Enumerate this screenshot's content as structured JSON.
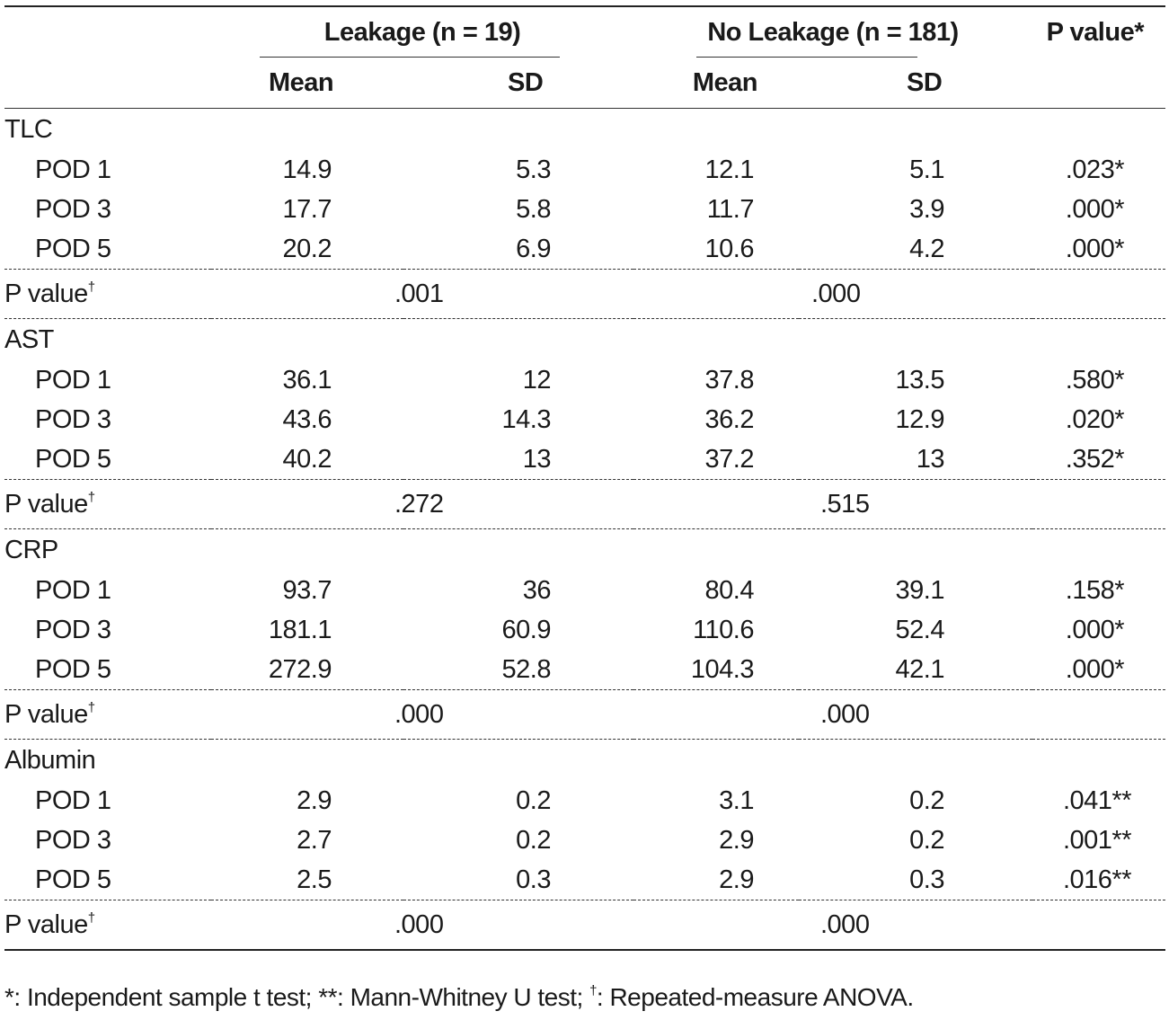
{
  "header": {
    "group_leakage": "Leakage (n = 19)",
    "group_no_leakage": "No Leakage (n = 181)",
    "p_value_col": "P value*",
    "mean": "Mean",
    "sd": "SD"
  },
  "sections": [
    {
      "name": "TLC",
      "rows": [
        {
          "label": "POD 1",
          "l_mean": "14.9",
          "l_sd": "5.3",
          "n_mean": "12.1",
          "n_sd": "5.1",
          "p": ".023*"
        },
        {
          "label": "POD 3",
          "l_mean": "17.7",
          "l_sd": "5.8",
          "n_mean": "11.7",
          "n_sd": "3.9",
          "p": ".000*"
        },
        {
          "label": "POD 5",
          "l_mean": "20.2",
          "l_sd": "6.9",
          "n_mean": "10.6",
          "n_sd": "4.2",
          "p": ".000*"
        }
      ],
      "pvalue_label": "P value",
      "pvalue_mark": "†",
      "pvalue_leakage": ".001",
      "pvalue_no_leakage": ".000"
    },
    {
      "name": "AST",
      "rows": [
        {
          "label": "POD 1",
          "l_mean": "36.1",
          "l_sd": "12",
          "n_mean": "37.8",
          "n_sd": "13.5",
          "p": ".580*"
        },
        {
          "label": "POD 3",
          "l_mean": "43.6",
          "l_sd": "14.3",
          "n_mean": "36.2",
          "n_sd": "12.9",
          "p": ".020*"
        },
        {
          "label": "POD 5",
          "l_mean": "40.2",
          "l_sd": "13",
          "n_mean": "37.2",
          "n_sd": "13",
          "p": ".352*"
        }
      ],
      "pvalue_label": "P value",
      "pvalue_mark": "†",
      "pvalue_leakage": ".272",
      "pvalue_no_leakage": ".515"
    },
    {
      "name": "CRP",
      "rows": [
        {
          "label": "POD 1",
          "l_mean": "93.7",
          "l_sd": "36",
          "n_mean": "80.4",
          "n_sd": "39.1",
          "p": ".158*"
        },
        {
          "label": "POD 3",
          "l_mean": "181.1",
          "l_sd": "60.9",
          "n_mean": "110.6",
          "n_sd": "52.4",
          "p": ".000*"
        },
        {
          "label": "POD 5",
          "l_mean": "272.9",
          "l_sd": "52.8",
          "n_mean": "104.3",
          "n_sd": "42.1",
          "p": ".000*"
        }
      ],
      "pvalue_label": "P value",
      "pvalue_mark": "†",
      "pvalue_leakage": ".000",
      "pvalue_no_leakage": ".000"
    },
    {
      "name": "Albumin",
      "rows": [
        {
          "label": "POD 1",
          "l_mean": "2.9",
          "l_sd": "0.2",
          "n_mean": "3.1",
          "n_sd": "0.2",
          "p": ".041**"
        },
        {
          "label": "POD 3",
          "l_mean": "2.7",
          "l_sd": "0.2",
          "n_mean": "2.9",
          "n_sd": "0.2",
          "p": ".001**"
        },
        {
          "label": "POD 5",
          "l_mean": "2.5",
          "l_sd": "0.3",
          "n_mean": "2.9",
          "n_sd": "0.3",
          "p": ".016**"
        }
      ],
      "pvalue_label": "P value",
      "pvalue_mark": "†",
      "pvalue_leakage": ".000",
      "pvalue_no_leakage": ".000"
    }
  ],
  "footnote": {
    "part1": "*: Independent sample t test; **: Mann-Whitney U test; ",
    "mark": "†",
    "part2": ": Repeated-measure ANOVA."
  }
}
